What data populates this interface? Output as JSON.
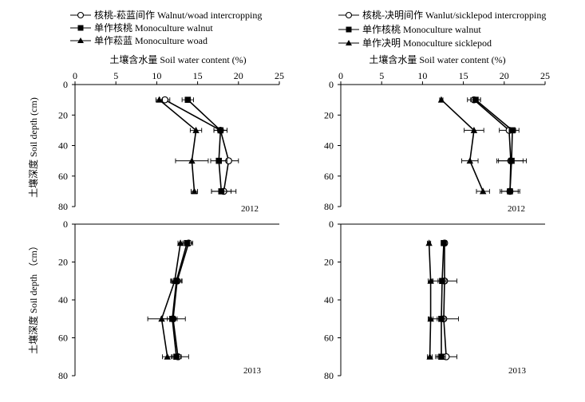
{
  "figure": {
    "x_axis_title": "土壤含水量 Soil  water content  (%)",
    "y_axis_title_top": "土壤深度 Soil depth (cm)",
    "y_axis_title_bottom": "土壤深度 Soil depth （cm）"
  },
  "legends": {
    "left": [
      {
        "label": "核桃-菘蓝间作 Walnut/woad intercropping",
        "marker": "circle-open"
      },
      {
        "label": "单作核桃 Monoculture walnut",
        "marker": "square"
      },
      {
        "label": "单作菘蓝 Monoculture woad",
        "marker": "triangle"
      }
    ],
    "right": [
      {
        "label": "核桃-决明间作 Wanlut/sicklepod intercropping",
        "marker": "circle-open"
      },
      {
        "label": "单作核桃 Monoculture walnut",
        "marker": "square"
      },
      {
        "label": "单作决明 Monoculture sicklepod",
        "marker": "triangle"
      }
    ]
  },
  "chart_data": [
    {
      "type": "line",
      "panel": "top-left",
      "year_label": "2012",
      "xlabel": "土壤含水量 Soil  water content  (%)",
      "ylabel": "土壤深度 Soil depth (cm)",
      "xlim": [
        0,
        25
      ],
      "ylim": [
        80,
        0
      ],
      "xticks": [
        0,
        5,
        10,
        15,
        20,
        25
      ],
      "yticks": [
        0,
        20,
        40,
        60,
        80
      ],
      "series": [
        {
          "name": "核桃-菘蓝间作 Walnut/woad intercropping",
          "marker": "circle-open",
          "points": [
            {
              "x": 11.0,
              "y": 10,
              "err": 0.6
            },
            {
              "x": 17.8,
              "y": 30,
              "err": 0.8
            },
            {
              "x": 18.8,
              "y": 50,
              "err": 1.2
            },
            {
              "x": 18.2,
              "y": 70,
              "err": 1.5
            }
          ]
        },
        {
          "name": "单作核桃 Monoculture walnut",
          "marker": "square",
          "points": [
            {
              "x": 13.8,
              "y": 10,
              "err": 0.7
            },
            {
              "x": 17.8,
              "y": 30,
              "err": 0.8
            },
            {
              "x": 17.6,
              "y": 50,
              "err": 1.0
            },
            {
              "x": 17.9,
              "y": 70,
              "err": 1.2
            }
          ]
        },
        {
          "name": "单作菘蓝 Monoculture woad",
          "marker": "triangle",
          "points": [
            {
              "x": 10.3,
              "y": 10,
              "err": 0.4
            },
            {
              "x": 14.8,
              "y": 30,
              "err": 0.7
            },
            {
              "x": 14.3,
              "y": 50,
              "err": 2.0
            },
            {
              "x": 14.6,
              "y": 70,
              "err": 0.4
            }
          ]
        }
      ]
    },
    {
      "type": "line",
      "panel": "top-right",
      "year_label": "2012",
      "xlabel": "土壤含水量 Soil  water content  (%)",
      "ylabel": "",
      "xlim": [
        0,
        25
      ],
      "ylim": [
        80,
        0
      ],
      "xticks": [
        0,
        5,
        10,
        15,
        20,
        25
      ],
      "yticks": [
        0,
        20,
        40,
        60,
        80
      ],
      "series": [
        {
          "name": "核桃-决明间作 Wanlut/sicklepod intercropping",
          "marker": "circle-open",
          "points": [
            {
              "x": 16.3,
              "y": 10,
              "err": 0.8
            },
            {
              "x": 20.6,
              "y": 30,
              "err": 1.2
            },
            {
              "x": 20.8,
              "y": 50,
              "err": 1.5
            },
            {
              "x": 20.7,
              "y": 70,
              "err": 1.2
            }
          ]
        },
        {
          "name": "单作核桃 Monoculture walnut",
          "marker": "square",
          "points": [
            {
              "x": 16.5,
              "y": 10,
              "err": 0.6
            },
            {
              "x": 21.0,
              "y": 30,
              "err": 0.4
            },
            {
              "x": 20.9,
              "y": 50,
              "err": 1.8
            },
            {
              "x": 20.7,
              "y": 70,
              "err": 1.0
            }
          ]
        },
        {
          "name": "单作决明 Monoculture sicklepod",
          "marker": "triangle",
          "points": [
            {
              "x": 12.3,
              "y": 10,
              "err": 0.2
            },
            {
              "x": 16.3,
              "y": 30,
              "err": 1.2
            },
            {
              "x": 15.8,
              "y": 50,
              "err": 1.0
            },
            {
              "x": 17.4,
              "y": 70,
              "err": 0.8
            }
          ]
        }
      ]
    },
    {
      "type": "line",
      "panel": "bottom-left",
      "year_label": "2013",
      "xlabel": "",
      "ylabel": "土壤深度 Soil depth （cm）",
      "xlim": [
        0,
        25
      ],
      "ylim": [
        80,
        0
      ],
      "yticks": [
        0,
        20,
        40,
        60,
        80
      ],
      "series": [
        {
          "name": "核桃-菘蓝间作 Walnut/woad intercropping",
          "marker": "circle-open",
          "points": [
            {
              "x": 13.9,
              "y": 10,
              "err": 0.5
            },
            {
              "x": 12.5,
              "y": 30,
              "err": 0.6
            },
            {
              "x": 12.0,
              "y": 50,
              "err": 1.5
            },
            {
              "x": 12.6,
              "y": 70,
              "err": 1.3
            }
          ]
        },
        {
          "name": "单作核桃 Monoculture walnut",
          "marker": "square",
          "points": [
            {
              "x": 13.7,
              "y": 10,
              "err": 0.5
            },
            {
              "x": 12.4,
              "y": 30,
              "err": 0.6
            },
            {
              "x": 11.9,
              "y": 50,
              "err": 0.6
            },
            {
              "x": 12.4,
              "y": 70,
              "err": 0.6
            }
          ]
        },
        {
          "name": "单作菘蓝 Monoculture woad",
          "marker": "triangle",
          "points": [
            {
              "x": 12.9,
              "y": 10,
              "err": 0.3
            },
            {
              "x": 12.2,
              "y": 30,
              "err": 0.5
            },
            {
              "x": 10.6,
              "y": 50,
              "err": 1.7
            },
            {
              "x": 11.3,
              "y": 70,
              "err": 0.6
            }
          ]
        }
      ]
    },
    {
      "type": "line",
      "panel": "bottom-right",
      "year_label": "2013",
      "xlabel": "",
      "ylabel": "",
      "xlim": [
        0,
        25
      ],
      "ylim": [
        80,
        0
      ],
      "yticks": [
        0,
        20,
        40,
        60,
        80
      ],
      "series": [
        {
          "name": "核桃-决明间作 Wanlut/sicklepod intercropping",
          "marker": "circle-open",
          "points": [
            {
              "x": 12.7,
              "y": 10,
              "err": 0.3
            },
            {
              "x": 12.7,
              "y": 30,
              "err": 1.5
            },
            {
              "x": 12.6,
              "y": 50,
              "err": 1.8
            },
            {
              "x": 12.9,
              "y": 70,
              "err": 1.3
            }
          ]
        },
        {
          "name": "单作核桃 Monoculture walnut",
          "marker": "square",
          "points": [
            {
              "x": 12.6,
              "y": 10,
              "err": 0.3
            },
            {
              "x": 12.4,
              "y": 30,
              "err": 0.5
            },
            {
              "x": 12.3,
              "y": 50,
              "err": 0.5
            },
            {
              "x": 12.3,
              "y": 70,
              "err": 0.5
            }
          ]
        },
        {
          "name": "单作决明 Monoculture sicklepod",
          "marker": "triangle",
          "points": [
            {
              "x": 10.8,
              "y": 10,
              "err": 0.2
            },
            {
              "x": 11.0,
              "y": 30,
              "err": 0.3
            },
            {
              "x": 11.0,
              "y": 50,
              "err": 0.3
            },
            {
              "x": 10.9,
              "y": 70,
              "err": 0.3
            }
          ]
        }
      ]
    }
  ]
}
